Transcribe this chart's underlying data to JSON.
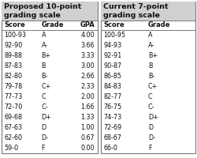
{
  "left_title": "Proposed 10-point\ngrading scale",
  "right_title": "Current 7-point\ngrading scale",
  "left_headers": [
    "Score",
    "Grade",
    "GPA"
  ],
  "right_headers": [
    "Score",
    "Grade"
  ],
  "left_rows": [
    [
      "100-93",
      "A",
      "4.00"
    ],
    [
      "92-90",
      "A-",
      "3.66"
    ],
    [
      "89-88",
      "B+",
      "3.33"
    ],
    [
      "87-83",
      "B",
      "3.00"
    ],
    [
      "82-80",
      "B-",
      "2.66"
    ],
    [
      "79-78",
      "C+",
      "2.33"
    ],
    [
      "77-73",
      "C",
      "2.00"
    ],
    [
      "72-70",
      "C-",
      "1.66"
    ],
    [
      "69-68",
      "D+",
      "1.33"
    ],
    [
      "67-63",
      "D",
      "1.00"
    ],
    [
      "62-60",
      "D-",
      "0.67"
    ],
    [
      "59-0",
      "F",
      "0.00"
    ]
  ],
  "right_rows": [
    [
      "100-95",
      "A"
    ],
    [
      "94-93",
      "A-"
    ],
    [
      "92-91",
      "B+"
    ],
    [
      "90-87",
      "B"
    ],
    [
      "86-85",
      "B-"
    ],
    [
      "84-83",
      "C+"
    ],
    [
      "82-77",
      "C"
    ],
    [
      "76-75",
      "C-"
    ],
    [
      "74-73",
      "D+"
    ],
    [
      "72-69",
      "D"
    ],
    [
      "68-67",
      "D-"
    ],
    [
      "66-0",
      "F"
    ]
  ],
  "title_bg": "#d0d0d0",
  "border_color": "#777777",
  "text_color": "#111111",
  "bg_color": "#ffffff",
  "title_fontsize": 6.8,
  "header_fontsize": 6.0,
  "row_fontsize": 5.8,
  "fig_width": 2.5,
  "fig_height": 2.0,
  "dpi": 100
}
